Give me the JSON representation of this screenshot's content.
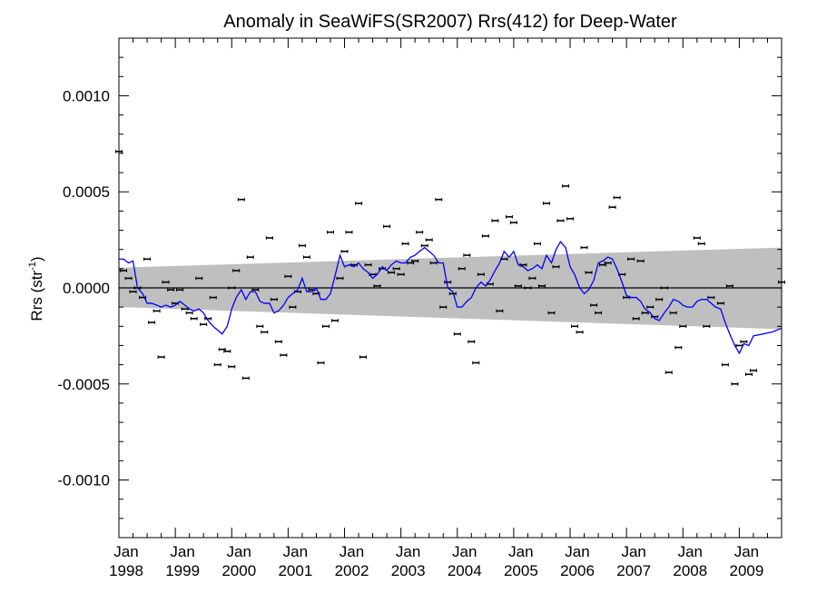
{
  "chart_data": {
    "type": "scatter",
    "title": "Anomaly in SeaWiFS(SR2007) Rrs(412) for Deep-Water",
    "ylabel": "Rrs (str",
    "ylabel_superscript": "-1",
    "ylabel_suffix": ")",
    "xlim": [
      1998.0,
      2009.75
    ],
    "ylim": [
      -0.0013,
      0.0013
    ],
    "x_ticks": [
      {
        "x": 1998,
        "line1": "Jan",
        "line2": "1998"
      },
      {
        "x": 1999,
        "line1": "Jan",
        "line2": "1999"
      },
      {
        "x": 2000,
        "line1": "Jan",
        "line2": "2000"
      },
      {
        "x": 2001,
        "line1": "Jan",
        "line2": "2001"
      },
      {
        "x": 2002,
        "line1": "Jan",
        "line2": "2002"
      },
      {
        "x": 2003,
        "line1": "Jan",
        "line2": "2003"
      },
      {
        "x": 2004,
        "line1": "Jan",
        "line2": "2004"
      },
      {
        "x": 2005,
        "line1": "Jan",
        "line2": "2005"
      },
      {
        "x": 2006,
        "line1": "Jan",
        "line2": "2006"
      },
      {
        "x": 2007,
        "line1": "Jan",
        "line2": "2007"
      },
      {
        "x": 2008,
        "line1": "Jan",
        "line2": "2008"
      },
      {
        "x": 2009,
        "line1": "Jan",
        "line2": "2009"
      }
    ],
    "y_ticks": [
      {
        "v": 0.001,
        "label": "0.0010"
      },
      {
        "v": 0.0005,
        "label": "0.0005"
      },
      {
        "v": 0.0,
        "label": "0.0000"
      },
      {
        "v": -0.0005,
        "label": "-0.0005"
      },
      {
        "v": -0.001,
        "label": "-0.0010"
      }
    ],
    "zero_line": 0.0,
    "band": {
      "color": "#bfbfbf",
      "upper": [
        [
          1998.0,
          0.000105
        ],
        [
          2009.75,
          0.00021
        ]
      ],
      "lower": [
        [
          1998.0,
          -0.0001
        ],
        [
          2009.75,
          -0.000215
        ]
      ]
    },
    "points": [
      [
        1998.0,
        0.00071
      ],
      [
        1998.08,
        9e-05
      ],
      [
        1998.17,
        5e-05
      ],
      [
        1998.25,
        -2e-05
      ],
      [
        1998.33,
        0.0
      ],
      [
        1998.42,
        -5e-05
      ],
      [
        1998.5,
        0.00015
      ],
      [
        1998.58,
        -0.00018
      ],
      [
        1998.67,
        -0.00012
      ],
      [
        1998.75,
        -0.00036
      ],
      [
        1998.83,
        3e-05
      ],
      [
        1998.92,
        -1e-05
      ],
      [
        1999.0,
        -8e-05
      ],
      [
        1999.08,
        -1e-05
      ],
      [
        1999.17,
        -0.00011
      ],
      [
        1999.25,
        -0.00013
      ],
      [
        1999.33,
        -0.00016
      ],
      [
        1999.42,
        5e-05
      ],
      [
        1999.5,
        -0.00019
      ],
      [
        1999.58,
        -0.00016
      ],
      [
        1999.67,
        -5e-05
      ],
      [
        1999.75,
        -0.0004
      ],
      [
        1999.83,
        -0.00032
      ],
      [
        1999.92,
        -0.00033
      ],
      [
        2000.0,
        0.0
      ],
      [
        2000.0,
        -0.00041
      ],
      [
        2000.08,
        9e-05
      ],
      [
        2000.17,
        0.00046
      ],
      [
        2000.25,
        -0.00047
      ],
      [
        2000.33,
        0.00016
      ],
      [
        2000.42,
        -1e-05
      ],
      [
        2000.5,
        -0.0002
      ],
      [
        2000.58,
        -0.00023
      ],
      [
        2000.67,
        0.00026
      ],
      [
        2000.75,
        -6e-05
      ],
      [
        2000.83,
        -0.00028
      ],
      [
        2000.92,
        -0.00035
      ],
      [
        2001.0,
        6e-05
      ],
      [
        2001.08,
        -0.0001
      ],
      [
        2001.17,
        -2e-05
      ],
      [
        2001.25,
        0.00022
      ],
      [
        2001.33,
        0.00016
      ],
      [
        2001.42,
        -1e-05
      ],
      [
        2001.5,
        -3e-05
      ],
      [
        2001.58,
        -0.00039
      ],
      [
        2001.67,
        -0.0002
      ],
      [
        2001.75,
        0.00029
      ],
      [
        2001.83,
        -0.00017
      ],
      [
        2001.92,
        5e-05
      ],
      [
        2002.0,
        0.00019
      ],
      [
        2002.08,
        0.00029
      ],
      [
        2002.17,
        0.00012
      ],
      [
        2002.25,
        0.00044
      ],
      [
        2002.33,
        -0.00036
      ],
      [
        2002.42,
        0.00012
      ],
      [
        2002.5,
        7e-05
      ],
      [
        2002.58,
        1e-05
      ],
      [
        2002.67,
        0.0001
      ],
      [
        2002.75,
        0.00032
      ],
      [
        2002.83,
        8e-05
      ],
      [
        2002.92,
        0.0001
      ],
      [
        2003.0,
        7e-05
      ],
      [
        2003.08,
        0.00023
      ],
      [
        2003.17,
        0.00013
      ],
      [
        2003.25,
        0.00014
      ],
      [
        2003.33,
        0.00029
      ],
      [
        2003.42,
        0.00022
      ],
      [
        2003.5,
        0.00025
      ],
      [
        2003.58,
        0.00013
      ],
      [
        2003.67,
        0.00046
      ],
      [
        2003.75,
        -0.0001
      ],
      [
        2003.83,
        3e-05
      ],
      [
        2003.92,
        -3e-05
      ],
      [
        2004.0,
        -0.00024
      ],
      [
        2004.08,
        0.0001
      ],
      [
        2004.17,
        0.00017
      ],
      [
        2004.25,
        -0.00028
      ],
      [
        2004.33,
        -0.00039
      ],
      [
        2004.42,
        7e-05
      ],
      [
        2004.5,
        0.00027
      ],
      [
        2004.58,
        2e-05
      ],
      [
        2004.67,
        0.00035
      ],
      [
        2004.75,
        -0.00012
      ],
      [
        2004.83,
        0.00015
      ],
      [
        2004.92,
        0.00037
      ],
      [
        2005.0,
        0.00034
      ],
      [
        2005.08,
        1e-05
      ],
      [
        2005.17,
        0.00012
      ],
      [
        2005.25,
        0.0
      ],
      [
        2005.33,
        5e-05
      ],
      [
        2005.42,
        0.00023
      ],
      [
        2005.5,
        1e-05
      ],
      [
        2005.58,
        0.00044
      ],
      [
        2005.67,
        -0.00013
      ],
      [
        2005.75,
        0.00011
      ],
      [
        2005.83,
        0.00035
      ],
      [
        2005.92,
        0.00053
      ],
      [
        2006.0,
        0.00036
      ],
      [
        2006.08,
        -0.0002
      ],
      [
        2006.17,
        -0.00023
      ],
      [
        2006.25,
        0.00021
      ],
      [
        2006.33,
        8e-05
      ],
      [
        2006.42,
        -9e-05
      ],
      [
        2006.5,
        -0.00013
      ],
      [
        2006.58,
        0.00012
      ],
      [
        2006.67,
        0.00013
      ],
      [
        2006.75,
        0.00042
      ],
      [
        2006.83,
        0.00047
      ],
      [
        2006.92,
        7e-05
      ],
      [
        2007.0,
        -5e-05
      ],
      [
        2007.08,
        0.00015
      ],
      [
        2007.17,
        -0.00016
      ],
      [
        2007.25,
        0.00014
      ],
      [
        2007.33,
        -0.00013
      ],
      [
        2007.42,
        -0.0001
      ],
      [
        2007.5,
        -0.00015
      ],
      [
        2007.58,
        -6e-05
      ],
      [
        2007.67,
        0.0
      ],
      [
        2007.75,
        -0.00044
      ],
      [
        2007.83,
        -0.00013
      ],
      [
        2007.92,
        -0.00031
      ],
      [
        2008.0,
        -0.0002
      ],
      [
        2008.25,
        0.00026
      ],
      [
        2008.33,
        0.00023
      ],
      [
        2008.42,
        -0.0002
      ],
      [
        2008.5,
        -5e-05
      ],
      [
        2008.67,
        -8e-05
      ],
      [
        2008.75,
        -0.0004
      ],
      [
        2008.83,
        1e-05
      ],
      [
        2008.92,
        -0.0005
      ],
      [
        2009.0,
        -0.0003
      ],
      [
        2009.08,
        -0.00028
      ],
      [
        2009.17,
        -0.00045
      ],
      [
        2009.25,
        -0.00043
      ],
      [
        2009.75,
        3e-05
      ]
    ],
    "smooth_line": {
      "color": "#0000ff",
      "points": [
        [
          1998.0,
          0.00015
        ],
        [
          1998.08,
          0.00015
        ],
        [
          1998.17,
          0.00013
        ],
        [
          1998.25,
          0.00014
        ],
        [
          1998.33,
          0.0
        ],
        [
          1998.42,
          -3e-05
        ],
        [
          1998.5,
          -8e-05
        ],
        [
          1998.58,
          -8e-05
        ],
        [
          1998.67,
          -9e-05
        ],
        [
          1998.75,
          -0.0001
        ],
        [
          1998.83,
          -9e-05
        ],
        [
          1998.92,
          -0.0001
        ],
        [
          1999.0,
          -9e-05
        ],
        [
          1999.08,
          -7e-05
        ],
        [
          1999.17,
          -9e-05
        ],
        [
          1999.25,
          -0.00011
        ],
        [
          1999.33,
          -0.00012
        ],
        [
          1999.42,
          -0.00011
        ],
        [
          1999.5,
          -0.00013
        ],
        [
          1999.58,
          -0.00017
        ],
        [
          1999.67,
          -0.0002
        ],
        [
          1999.75,
          -0.00022
        ],
        [
          1999.83,
          -0.00024
        ],
        [
          1999.92,
          -0.0002
        ],
        [
          2000.0,
          -0.00011
        ],
        [
          2000.08,
          -5e-05
        ],
        [
          2000.17,
          -1e-05
        ],
        [
          2000.25,
          -6e-05
        ],
        [
          2000.33,
          -2e-05
        ],
        [
          2000.42,
          -2e-05
        ],
        [
          2000.5,
          -7e-05
        ],
        [
          2000.58,
          -8e-05
        ],
        [
          2000.67,
          -8e-05
        ],
        [
          2000.75,
          -0.00013
        ],
        [
          2000.83,
          -0.00012
        ],
        [
          2000.92,
          -9e-05
        ],
        [
          2001.0,
          -5e-05
        ],
        [
          2001.08,
          -3e-05
        ],
        [
          2001.17,
          -1e-05
        ],
        [
          2001.25,
          5e-05
        ],
        [
          2001.33,
          -2e-05
        ],
        [
          2001.42,
          -2e-05
        ],
        [
          2001.5,
          0.0
        ],
        [
          2001.58,
          -6e-05
        ],
        [
          2001.67,
          -6e-05
        ],
        [
          2001.75,
          -3e-05
        ],
        [
          2001.83,
          6e-05
        ],
        [
          2001.92,
          0.00017
        ],
        [
          2002.0,
          0.00011
        ],
        [
          2002.08,
          0.00012
        ],
        [
          2002.17,
          0.00011
        ],
        [
          2002.25,
          0.00013
        ],
        [
          2002.33,
          0.0001
        ],
        [
          2002.42,
          8e-05
        ],
        [
          2002.5,
          5e-05
        ],
        [
          2002.58,
          7e-05
        ],
        [
          2002.67,
          0.00011
        ],
        [
          2002.75,
          9e-05
        ],
        [
          2002.83,
          0.00012
        ],
        [
          2002.92,
          0.00014
        ],
        [
          2003.0,
          0.00013
        ],
        [
          2003.08,
          0.00013
        ],
        [
          2003.17,
          0.00016
        ],
        [
          2003.25,
          0.00017
        ],
        [
          2003.33,
          0.00019
        ],
        [
          2003.42,
          0.00021
        ],
        [
          2003.5,
          0.00019
        ],
        [
          2003.58,
          0.00017
        ],
        [
          2003.67,
          0.00013
        ],
        [
          2003.75,
          0.00013
        ],
        [
          2003.83,
          0.0
        ],
        [
          2003.92,
          -2e-05
        ],
        [
          2004.0,
          -0.0001
        ],
        [
          2004.08,
          -0.0001
        ],
        [
          2004.17,
          -7e-05
        ],
        [
          2004.25,
          -5e-05
        ],
        [
          2004.33,
          0.0
        ],
        [
          2004.42,
          3e-05
        ],
        [
          2004.5,
          1e-05
        ],
        [
          2004.58,
          4e-05
        ],
        [
          2004.67,
          9e-05
        ],
        [
          2004.75,
          0.00013
        ],
        [
          2004.83,
          0.00019
        ],
        [
          2004.92,
          0.00016
        ],
        [
          2005.0,
          0.00019
        ],
        [
          2005.08,
          0.00012
        ],
        [
          2005.17,
          0.00011
        ],
        [
          2005.25,
          9e-05
        ],
        [
          2005.33,
          0.0001
        ],
        [
          2005.42,
          0.00012
        ],
        [
          2005.5,
          0.0001
        ],
        [
          2005.58,
          0.00017
        ],
        [
          2005.67,
          0.00013
        ],
        [
          2005.75,
          0.0002
        ],
        [
          2005.83,
          0.00024
        ],
        [
          2005.92,
          0.00021
        ],
        [
          2006.0,
          0.00011
        ],
        [
          2006.08,
          7e-05
        ],
        [
          2006.17,
          0.0
        ],
        [
          2006.25,
          -3e-05
        ],
        [
          2006.33,
          -1e-05
        ],
        [
          2006.42,
          4e-05
        ],
        [
          2006.5,
          0.00013
        ],
        [
          2006.58,
          0.00014
        ],
        [
          2006.67,
          0.00016
        ],
        [
          2006.75,
          0.00015
        ],
        [
          2006.83,
          0.0001
        ],
        [
          2006.92,
          3e-05
        ],
        [
          2007.0,
          -4e-05
        ],
        [
          2007.08,
          -5e-05
        ],
        [
          2007.17,
          -5e-05
        ],
        [
          2007.25,
          -7e-05
        ],
        [
          2007.33,
          -0.00011
        ],
        [
          2007.42,
          -0.00013
        ],
        [
          2007.5,
          -0.00016
        ],
        [
          2007.58,
          -0.00017
        ],
        [
          2007.67,
          -0.00013
        ],
        [
          2007.75,
          -0.0001
        ],
        [
          2007.83,
          -6e-05
        ],
        [
          2007.92,
          -7e-05
        ],
        [
          2008.0,
          -9e-05
        ],
        [
          2008.08,
          -0.0001
        ],
        [
          2008.17,
          -0.0001
        ],
        [
          2008.25,
          -7e-05
        ],
        [
          2008.33,
          -6e-05
        ],
        [
          2008.42,
          -6e-05
        ],
        [
          2008.5,
          -8e-05
        ],
        [
          2008.58,
          -0.0001
        ],
        [
          2008.67,
          -0.00011
        ],
        [
          2008.75,
          -0.00018
        ],
        [
          2008.83,
          -0.00024
        ],
        [
          2008.92,
          -0.0003
        ],
        [
          2009.0,
          -0.00034
        ],
        [
          2009.08,
          -0.00029
        ],
        [
          2009.17,
          -0.0003
        ],
        [
          2009.25,
          -0.00025
        ],
        [
          2009.42,
          -0.00024
        ],
        [
          2009.58,
          -0.00023
        ],
        [
          2009.75,
          -0.00021
        ]
      ]
    }
  }
}
